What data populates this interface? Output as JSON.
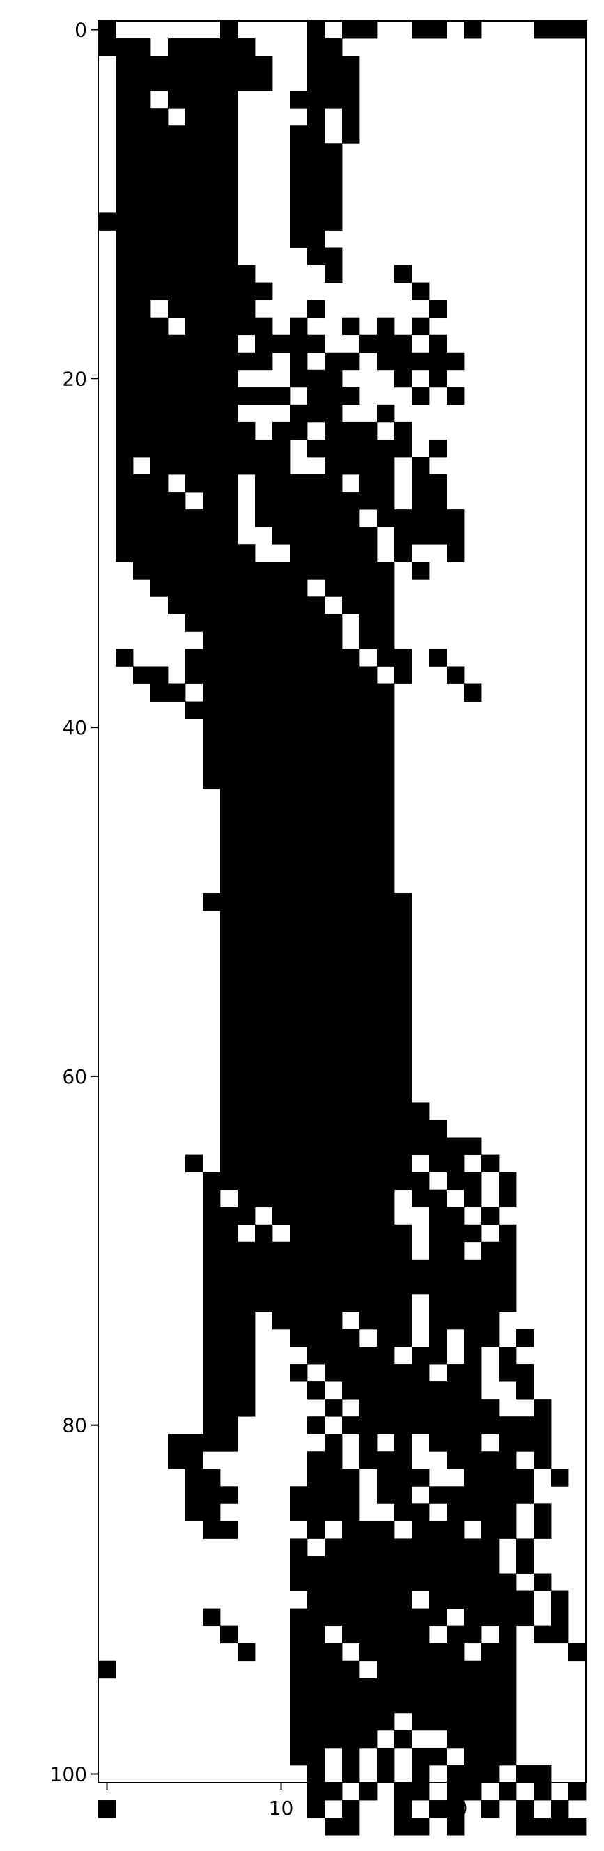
{
  "chart_data": {
    "type": "heatmap",
    "title": "",
    "xlabel": "",
    "ylabel": "",
    "colormap": "binary",
    "colors": {
      "filled": "#000000",
      "empty": "#ffffff",
      "axis": "#000000"
    },
    "xlim": [
      -0.5,
      27.5
    ],
    "ylim": [
      100.5,
      -0.5
    ],
    "x_ticks": [
      0,
      10,
      20
    ],
    "y_ticks": [
      0,
      20,
      40,
      60,
      80,
      100
    ],
    "x_tick_labels": [
      "0",
      "10",
      "20"
    ],
    "y_tick_labels": [
      "0",
      "20",
      "40",
      "60",
      "80",
      "100"
    ],
    "grid": false,
    "ncols": 28,
    "nrows": 101,
    "row_runs": [
      [
        [
          0,
          1
        ],
        [
          7,
          8
        ],
        [
          12,
          13
        ],
        [
          14,
          16
        ],
        [
          18,
          20
        ],
        [
          21,
          22
        ],
        [
          25,
          28
        ]
      ],
      [
        [
          0,
          3
        ],
        [
          4,
          9
        ],
        [
          12,
          14
        ]
      ],
      [
        [
          1,
          10
        ],
        [
          12,
          15
        ]
      ],
      [
        [
          1,
          10
        ],
        [
          12,
          15
        ]
      ],
      [
        [
          1,
          3
        ],
        [
          4,
          8
        ],
        [
          11,
          12
        ],
        [
          12,
          15
        ]
      ],
      [
        [
          1,
          4
        ],
        [
          5,
          8
        ],
        [
          12,
          13
        ],
        [
          14,
          15
        ]
      ],
      [
        [
          1,
          8
        ],
        [
          11,
          13
        ],
        [
          14,
          15
        ]
      ],
      [
        [
          1,
          8
        ],
        [
          11,
          14
        ]
      ],
      [
        [
          1,
          8
        ],
        [
          11,
          14
        ]
      ],
      [
        [
          1,
          8
        ],
        [
          11,
          14
        ]
      ],
      [
        [
          1,
          8
        ],
        [
          11,
          14
        ]
      ],
      [
        [
          0,
          8
        ],
        [
          11,
          14
        ]
      ],
      [
        [
          1,
          8
        ],
        [
          11,
          13
        ]
      ],
      [
        [
          1,
          8
        ],
        [
          12,
          14
        ]
      ],
      [
        [
          1,
          9
        ],
        [
          13,
          14
        ],
        [
          17,
          18
        ]
      ],
      [
        [
          1,
          10
        ],
        [
          18,
          19
        ]
      ],
      [
        [
          1,
          3
        ],
        [
          4,
          9
        ],
        [
          12,
          13
        ],
        [
          19,
          20
        ]
      ],
      [
        [
          1,
          4
        ],
        [
          5,
          10
        ],
        [
          11,
          12
        ],
        [
          14,
          15
        ],
        [
          16,
          17
        ],
        [
          18,
          19
        ]
      ],
      [
        [
          1,
          8
        ],
        [
          9,
          13
        ],
        [
          15,
          16
        ],
        [
          16,
          18
        ],
        [
          19,
          20
        ]
      ],
      [
        [
          1,
          10
        ],
        [
          11,
          12
        ],
        [
          13,
          15
        ],
        [
          16,
          21
        ]
      ],
      [
        [
          1,
          8
        ],
        [
          11,
          14
        ],
        [
          17,
          18
        ],
        [
          19,
          20
        ]
      ],
      [
        [
          1,
          11
        ],
        [
          12,
          15
        ],
        [
          18,
          19
        ],
        [
          20,
          21
        ]
      ],
      [
        [
          1,
          8
        ],
        [
          11,
          14
        ],
        [
          16,
          17
        ]
      ],
      [
        [
          1,
          9
        ],
        [
          10,
          12
        ],
        [
          13,
          16
        ],
        [
          17,
          18
        ]
      ],
      [
        [
          1,
          11
        ],
        [
          12,
          17
        ],
        [
          17,
          18
        ],
        [
          19,
          20
        ]
      ],
      [
        [
          1,
          2
        ],
        [
          3,
          11
        ],
        [
          13,
          17
        ],
        [
          18,
          19
        ]
      ],
      [
        [
          1,
          4
        ],
        [
          5,
          8
        ],
        [
          9,
          14
        ],
        [
          15,
          16
        ],
        [
          16,
          17
        ],
        [
          18,
          20
        ]
      ],
      [
        [
          1,
          5
        ],
        [
          6,
          8
        ],
        [
          9,
          16
        ],
        [
          16,
          17
        ],
        [
          18,
          20
        ]
      ],
      [
        [
          1,
          8
        ],
        [
          9,
          11
        ],
        [
          11,
          15
        ],
        [
          16,
          21
        ]
      ],
      [
        [
          1,
          8
        ],
        [
          10,
          11
        ],
        [
          11,
          16
        ],
        [
          17,
          21
        ]
      ],
      [
        [
          1,
          9
        ],
        [
          11,
          16
        ],
        [
          17,
          18
        ],
        [
          20,
          21
        ]
      ],
      [
        [
          2,
          11
        ],
        [
          11,
          16
        ],
        [
          16,
          17
        ],
        [
          18,
          19
        ]
      ],
      [
        [
          3,
          12
        ],
        [
          13,
          17
        ]
      ],
      [
        [
          4,
          13
        ],
        [
          14,
          17
        ]
      ],
      [
        [
          5,
          14
        ],
        [
          15,
          17
        ]
      ],
      [
        [
          6,
          14
        ],
        [
          15,
          17
        ]
      ],
      [
        [
          1,
          2
        ],
        [
          5,
          15
        ],
        [
          16,
          17
        ],
        [
          17,
          18
        ],
        [
          19,
          20
        ]
      ],
      [
        [
          2,
          4
        ],
        [
          5,
          16
        ],
        [
          17,
          18
        ],
        [
          20,
          21
        ]
      ],
      [
        [
          3,
          5
        ],
        [
          6,
          17
        ],
        [
          21,
          22
        ]
      ],
      [
        [
          5,
          17
        ]
      ],
      [
        [
          6,
          17
        ]
      ],
      [
        [
          6,
          17
        ]
      ],
      [
        [
          6,
          17
        ]
      ],
      [
        [
          6,
          17
        ]
      ],
      [
        [
          7,
          17
        ]
      ],
      [
        [
          7,
          17
        ]
      ],
      [
        [
          7,
          17
        ]
      ],
      [
        [
          7,
          17
        ]
      ],
      [
        [
          7,
          17
        ]
      ],
      [
        [
          7,
          17
        ]
      ],
      [
        [
          6,
          18
        ]
      ],
      [
        [
          7,
          18
        ]
      ],
      [
        [
          7,
          18
        ]
      ],
      [
        [
          7,
          18
        ]
      ],
      [
        [
          7,
          18
        ]
      ],
      [
        [
          7,
          18
        ]
      ],
      [
        [
          7,
          18
        ]
      ],
      [
        [
          7,
          18
        ]
      ],
      [
        [
          7,
          18
        ]
      ],
      [
        [
          7,
          18
        ]
      ],
      [
        [
          7,
          18
        ]
      ],
      [
        [
          7,
          18
        ]
      ],
      [
        [
          7,
          19
        ]
      ],
      [
        [
          7,
          20
        ]
      ],
      [
        [
          7,
          22
        ]
      ],
      [
        [
          5,
          6
        ],
        [
          7,
          18
        ],
        [
          19,
          21
        ],
        [
          22,
          23
        ]
      ],
      [
        [
          6,
          8
        ],
        [
          8,
          19
        ],
        [
          20,
          22
        ],
        [
          23,
          24
        ]
      ],
      [
        [
          6,
          7
        ],
        [
          8,
          17
        ],
        [
          18,
          20
        ],
        [
          21,
          22
        ],
        [
          23,
          24
        ]
      ],
      [
        [
          6,
          9
        ],
        [
          10,
          17
        ],
        [
          19,
          21
        ],
        [
          22,
          23
        ]
      ],
      [
        [
          6,
          8
        ],
        [
          9,
          10
        ],
        [
          11,
          18
        ],
        [
          19,
          22
        ],
        [
          23,
          24
        ]
      ],
      [
        [
          6,
          18
        ],
        [
          19,
          21
        ],
        [
          22,
          24
        ]
      ],
      [
        [
          6,
          24
        ]
      ],
      [
        [
          6,
          24
        ]
      ],
      [
        [
          6,
          18
        ],
        [
          19,
          24
        ]
      ],
      [
        [
          6,
          9
        ],
        [
          10,
          14
        ],
        [
          15,
          18
        ],
        [
          19,
          23
        ]
      ],
      [
        [
          6,
          9
        ],
        [
          11,
          15
        ],
        [
          16,
          18
        ],
        [
          19,
          20
        ],
        [
          21,
          23
        ],
        [
          24,
          25
        ]
      ],
      [
        [
          6,
          9
        ],
        [
          12,
          17
        ],
        [
          18,
          20
        ],
        [
          21,
          22
        ],
        [
          23,
          24
        ]
      ],
      [
        [
          6,
          9
        ],
        [
          11,
          12
        ],
        [
          13,
          19
        ],
        [
          20,
          22
        ],
        [
          23,
          25
        ]
      ],
      [
        [
          6,
          9
        ],
        [
          12,
          13
        ],
        [
          14,
          22
        ],
        [
          24,
          25
        ]
      ],
      [
        [
          6,
          9
        ],
        [
          13,
          14
        ],
        [
          15,
          23
        ],
        [
          25,
          26
        ]
      ],
      [
        [
          6,
          8
        ],
        [
          12,
          13
        ],
        [
          14,
          24
        ],
        [
          24,
          26
        ]
      ],
      [
        [
          4,
          8
        ],
        [
          13,
          14
        ],
        [
          15,
          16
        ],
        [
          17,
          18
        ],
        [
          19,
          22
        ],
        [
          23,
          26
        ]
      ],
      [
        [
          4,
          6
        ],
        [
          12,
          14
        ],
        [
          15,
          16
        ],
        [
          16,
          18
        ],
        [
          20,
          24
        ],
        [
          25,
          26
        ]
      ],
      [
        [
          5,
          7
        ],
        [
          12,
          15
        ],
        [
          16,
          17
        ],
        [
          17,
          19
        ],
        [
          21,
          25
        ],
        [
          26,
          27
        ]
      ],
      [
        [
          5,
          8
        ],
        [
          11,
          15
        ],
        [
          16,
          18
        ],
        [
          19,
          25
        ]
      ],
      [
        [
          5,
          7
        ],
        [
          11,
          15
        ],
        [
          17,
          19
        ],
        [
          20,
          24
        ],
        [
          25,
          26
        ]
      ],
      [
        [
          6,
          8
        ],
        [
          12,
          13
        ],
        [
          14,
          17
        ],
        [
          18,
          21
        ],
        [
          22,
          24
        ],
        [
          25,
          26
        ]
      ],
      [
        [
          11,
          12
        ],
        [
          13,
          23
        ],
        [
          24,
          25
        ]
      ],
      [
        [
          11,
          23
        ],
        [
          24,
          25
        ]
      ],
      [
        [
          11,
          24
        ],
        [
          25,
          26
        ]
      ],
      [
        [
          12,
          18
        ],
        [
          19,
          25
        ],
        [
          26,
          27
        ]
      ],
      [
        [
          6,
          7
        ],
        [
          11,
          12
        ],
        [
          12,
          20
        ],
        [
          21,
          24
        ],
        [
          24,
          25
        ],
        [
          26,
          27
        ]
      ],
      [
        [
          7,
          8
        ],
        [
          11,
          13
        ],
        [
          14,
          19
        ],
        [
          20,
          22
        ],
        [
          23,
          24
        ],
        [
          25,
          27
        ]
      ],
      [
        [
          8,
          9
        ],
        [
          11,
          14
        ],
        [
          15,
          21
        ],
        [
          22,
          24
        ],
        [
          27,
          28
        ]
      ],
      [
        [
          0,
          1
        ],
        [
          11,
          15
        ],
        [
          16,
          24
        ]
      ],
      [
        [
          11,
          24
        ]
      ],
      [
        [
          11,
          24
        ]
      ],
      [
        [
          11,
          17
        ],
        [
          18,
          24
        ]
      ],
      [
        [
          11,
          16
        ],
        [
          17,
          18
        ],
        [
          20,
          24
        ]
      ],
      [
        [
          11,
          13
        ],
        [
          14,
          15
        ],
        [
          16,
          17
        ],
        [
          18,
          20
        ],
        [
          21,
          24
        ]
      ],
      [
        [
          12,
          13
        ],
        [
          14,
          15
        ],
        [
          16,
          17
        ],
        [
          18,
          19
        ],
        [
          20,
          23
        ],
        [
          24,
          26
        ]
      ],
      [
        [
          12,
          14
        ],
        [
          15,
          16
        ],
        [
          17,
          19
        ],
        [
          20,
          22
        ],
        [
          23,
          24
        ],
        [
          25,
          26
        ],
        [
          27,
          28
        ]
      ],
      [
        [
          0,
          1
        ],
        [
          12,
          13
        ],
        [
          14,
          15
        ],
        [
          17,
          18
        ],
        [
          19,
          21
        ],
        [
          22,
          23
        ],
        [
          24,
          25
        ],
        [
          26,
          27
        ]
      ],
      [
        [
          13,
          15
        ],
        [
          17,
          19
        ],
        [
          20,
          21
        ],
        [
          24,
          28
        ]
      ]
    ]
  }
}
